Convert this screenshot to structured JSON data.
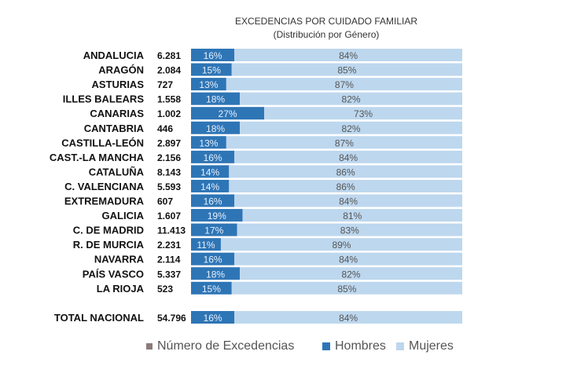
{
  "chart_data": {
    "type": "bar",
    "stacked": "percent",
    "orientation": "horizontal",
    "title": "EXCEDENCIAS POR CUIDADO FAMILIAR",
    "subtitle": "(Distribución por Género)",
    "categories": [
      "ANDALUCIA",
      "ARAGÓN",
      "ASTURIAS",
      "ILLES BALEARS",
      "CANARIAS",
      "CANTABRIA",
      "CASTILLA-LEÓN",
      "CAST.-LA MANCHA",
      "CATALUÑA",
      "C. VALENCIANA",
      "EXTREMADURA",
      "GALICIA",
      "C. DE MADRID",
      "R. DE MURCIA",
      "NAVARRA",
      "PAÍS VASCO",
      "LA RIOJA",
      "TOTAL NACIONAL"
    ],
    "counts": [
      "6.281",
      "2.084",
      "727",
      "1.558",
      "1.002",
      "446",
      "2.897",
      "2.156",
      "8.143",
      "5.593",
      "607",
      "1.607",
      "11.413",
      "2.231",
      "2.114",
      "5.337",
      "523",
      "54.796"
    ],
    "series": [
      {
        "name": "Hombres",
        "color": "#2e75b6",
        "values": [
          16,
          15,
          13,
          18,
          27,
          18,
          13,
          16,
          14,
          14,
          16,
          19,
          17,
          11,
          16,
          18,
          15,
          16
        ]
      },
      {
        "name": "Mujeres",
        "color": "#bdd7ee",
        "values": [
          84,
          85,
          87,
          82,
          73,
          82,
          87,
          84,
          86,
          86,
          84,
          81,
          83,
          89,
          84,
          82,
          85,
          84
        ]
      }
    ],
    "count_series_name": "Número de Excedencias",
    "count_series_color": "#8c7b7b",
    "xlim": [
      0,
      100
    ],
    "grid": false,
    "legend": "bottom"
  }
}
